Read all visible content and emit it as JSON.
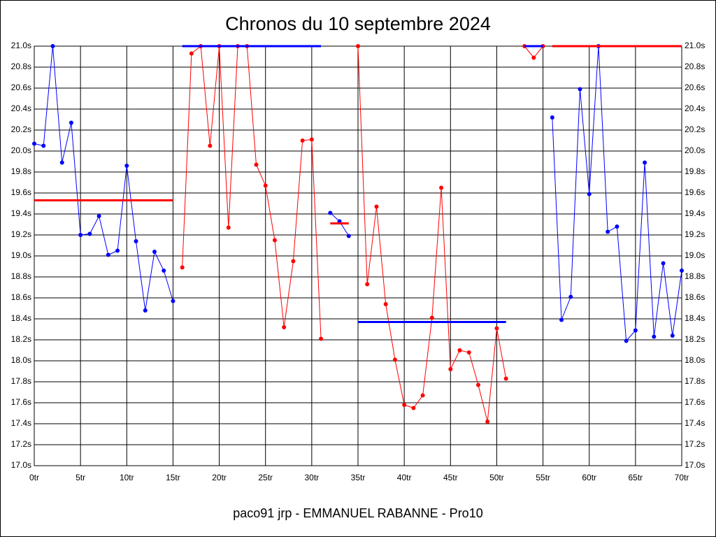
{
  "chart_data": {
    "type": "line",
    "title": "Chronos du 10 septembre 2024",
    "subtitle": "paco91 jrp - EMMANUEL RABANNE - Pro10",
    "xlim": [
      0,
      70
    ],
    "ylim": [
      17.0,
      21.0
    ],
    "grid": true,
    "xticks": [
      {
        "value": 0,
        "label": "0tr"
      },
      {
        "value": 5,
        "label": "5tr"
      },
      {
        "value": 10,
        "label": "10tr"
      },
      {
        "value": 15,
        "label": "15tr"
      },
      {
        "value": 20,
        "label": "20tr"
      },
      {
        "value": 25,
        "label": "25tr"
      },
      {
        "value": 30,
        "label": "30tr"
      },
      {
        "value": 35,
        "label": "35tr"
      },
      {
        "value": 40,
        "label": "40tr"
      },
      {
        "value": 45,
        "label": "45tr"
      },
      {
        "value": 50,
        "label": "50tr"
      },
      {
        "value": 55,
        "label": "55tr"
      },
      {
        "value": 60,
        "label": "60tr"
      },
      {
        "value": 65,
        "label": "65tr"
      },
      {
        "value": 70,
        "label": "70tr"
      }
    ],
    "yticks": [
      {
        "value": 17.0,
        "label": "17.0s"
      },
      {
        "value": 17.2,
        "label": "17.2s"
      },
      {
        "value": 17.4,
        "label": "17.4s"
      },
      {
        "value": 17.6,
        "label": "17.6s"
      },
      {
        "value": 17.8,
        "label": "17.8s"
      },
      {
        "value": 18.0,
        "label": "18.0s"
      },
      {
        "value": 18.2,
        "label": "18.2s"
      },
      {
        "value": 18.4,
        "label": "18.4s"
      },
      {
        "value": 18.6,
        "label": "18.6s"
      },
      {
        "value": 18.8,
        "label": "18.8s"
      },
      {
        "value": 19.0,
        "label": "19.0s"
      },
      {
        "value": 19.2,
        "label": "19.2s"
      },
      {
        "value": 19.4,
        "label": "19.4s"
      },
      {
        "value": 19.6,
        "label": "19.6s"
      },
      {
        "value": 19.8,
        "label": "19.8s"
      },
      {
        "value": 20.0,
        "label": "20.0s"
      },
      {
        "value": 20.2,
        "label": "20.2s"
      },
      {
        "value": 20.4,
        "label": "20.4s"
      },
      {
        "value": 20.6,
        "label": "20.6s"
      },
      {
        "value": 20.8,
        "label": "20.8s"
      },
      {
        "value": 21.0,
        "label": "21.0s"
      }
    ],
    "series": [
      {
        "color": "#0000ff",
        "x": [
          0,
          1,
          2,
          3,
          4,
          5,
          6,
          7,
          8,
          9,
          10,
          11,
          12,
          13,
          14,
          15
        ],
        "values": [
          20.07,
          20.05,
          21.0,
          19.89,
          20.27,
          19.2,
          19.21,
          19.38,
          19.01,
          19.05,
          19.86,
          19.14,
          18.48,
          19.04,
          18.86,
          18.57
        ]
      },
      {
        "color": "#ff0000",
        "x": [
          16,
          17,
          18,
          19,
          20,
          21,
          22,
          23,
          24,
          25,
          26,
          27,
          28,
          29,
          30,
          31
        ],
        "values": [
          18.89,
          20.93,
          21.0,
          20.05,
          21.0,
          19.27,
          21.0,
          21.0,
          19.87,
          19.67,
          19.15,
          18.32,
          18.95,
          20.1,
          20.11,
          18.21
        ]
      },
      {
        "color": "#0000ff",
        "x": [
          32,
          33,
          34
        ],
        "values": [
          19.41,
          19.33,
          19.19
        ]
      },
      {
        "color": "#ff0000",
        "x": [
          35,
          36,
          37,
          38,
          39,
          40,
          41,
          42,
          43,
          44,
          45,
          46,
          47,
          48,
          49,
          50,
          51
        ],
        "values": [
          21.0,
          18.73,
          19.47,
          18.54,
          18.01,
          17.58,
          17.55,
          17.67,
          18.41,
          19.65,
          17.92,
          18.1,
          18.08,
          17.77,
          17.42,
          18.31,
          17.83
        ]
      },
      {
        "color": "#ff0000",
        "x": [
          53,
          54,
          55
        ],
        "values": [
          21.0,
          20.89,
          21.0
        ]
      },
      {
        "color": "#0000ff",
        "x": [
          56,
          57,
          58,
          59,
          60,
          61,
          62,
          63,
          64,
          65,
          66,
          67,
          68,
          69,
          70
        ],
        "values": [
          20.32,
          18.39,
          18.61,
          20.59,
          19.59,
          21.0,
          19.23,
          19.28,
          18.19,
          18.29,
          19.89,
          18.23,
          18.93,
          18.24,
          18.86
        ]
      }
    ],
    "averages": [
      {
        "color": "#ff0000",
        "x": [
          0,
          15
        ],
        "value": 19.53
      },
      {
        "color": "#0000ff",
        "x": [
          16,
          31
        ],
        "value": 21.0
      },
      {
        "color": "#ff0000",
        "x": [
          32,
          34
        ],
        "value": 19.31
      },
      {
        "color": "#0000ff",
        "x": [
          35,
          51
        ],
        "value": 18.37
      },
      {
        "color": "#0000ff",
        "x": [
          53,
          55
        ],
        "value": 21.0
      },
      {
        "color": "#ff0000",
        "x": [
          56,
          70
        ],
        "value": 21.0
      }
    ]
  }
}
